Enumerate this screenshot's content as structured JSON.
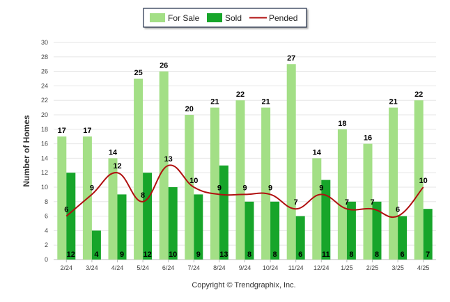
{
  "chart_data": {
    "type": "bar",
    "categories": [
      "2/24",
      "3/24",
      "4/24",
      "5/24",
      "6/24",
      "7/24",
      "8/24",
      "9/24",
      "10/24",
      "11/24",
      "12/24",
      "1/25",
      "2/25",
      "3/25",
      "4/25"
    ],
    "series": [
      {
        "name": "For Sale",
        "type": "bar",
        "color": "#a3df86",
        "values": [
          17,
          17,
          14,
          25,
          26,
          20,
          21,
          22,
          21,
          27,
          14,
          18,
          16,
          21,
          22
        ]
      },
      {
        "name": "Sold",
        "type": "bar",
        "color": "#17a52a",
        "values": [
          12,
          4,
          9,
          12,
          10,
          9,
          13,
          8,
          8,
          6,
          11,
          8,
          8,
          6,
          7
        ]
      },
      {
        "name": "Pended",
        "type": "line",
        "color": "#b01010",
        "values": [
          6,
          9,
          12,
          8,
          13,
          10,
          9,
          9,
          9,
          7,
          9,
          7,
          7,
          6,
          10
        ]
      }
    ],
    "ylabel": "Number of Homes",
    "xlabel": "",
    "ylim": [
      0,
      30
    ],
    "yticks": [
      0,
      2,
      4,
      6,
      8,
      10,
      12,
      14,
      16,
      18,
      20,
      22,
      24,
      26,
      28,
      30
    ],
    "grid": true,
    "legend_position": "top-center"
  },
  "footer": {
    "copyright": "Copyright © Trendgraphix, Inc."
  }
}
